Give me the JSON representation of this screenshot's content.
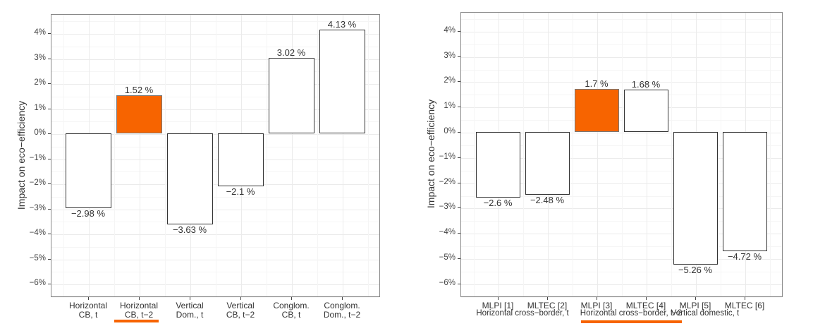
{
  "chart_data": [
    {
      "type": "bar",
      "title": "",
      "xlabel": "",
      "ylabel": "Impact on eco-efficiency",
      "ylim": [
        -6.5,
        4.6
      ],
      "yticks": [
        "4%",
        "3%",
        "2%",
        "1%",
        "0%",
        "-1%",
        "-2%",
        "-3%",
        "-4%",
        "-5%",
        "-6%"
      ],
      "grid": true,
      "categories": [
        "Horizontal\nCB, t",
        "Horizontal\nCB, t-2",
        "Vertical\nDom., t",
        "Vertical\nCB, t-2",
        "Conglom.\nCB, t",
        "Conglom.\nDom., t-2"
      ],
      "values": [
        -2.98,
        1.52,
        -3.63,
        -2.1,
        3.02,
        4.13
      ],
      "value_labels": [
        "-2.98 %",
        "1.52 %",
        "-3.63 %",
        "-2.1 %",
        "3.02 %",
        "4.13 %"
      ],
      "highlighted_index": 1,
      "highlight_color": "#f76400"
    },
    {
      "type": "bar",
      "title": "",
      "xlabel": "",
      "ylabel": "Impact on eco-efficiency",
      "ylim": [
        -6.5,
        4.6
      ],
      "yticks": [
        "4%",
        "3%",
        "2%",
        "1%",
        "0%",
        "-1%",
        "-2%",
        "-3%",
        "-4%",
        "-5%",
        "-6%"
      ],
      "grid": true,
      "categories": [
        "MLPI [1]",
        "MLTEC [2]",
        "MLPI [3]",
        "MLTEC [4]",
        "MLPI [5]",
        "MLTEC [6]"
      ],
      "groups": [
        "Horizontal cross-border, t",
        "Horizontal cross-border, t-2",
        "Vertical domestic, t"
      ],
      "values": [
        -2.6,
        -2.48,
        1.7,
        1.68,
        -5.26,
        -4.72
      ],
      "value_labels": [
        "-2.6 %",
        "-2.48 %",
        "1.7 %",
        "1.68 %",
        "-5.26 %",
        "-4.72 %"
      ],
      "highlighted_index": 2,
      "highlighted_group": 1,
      "highlight_color": "#f76400"
    }
  ],
  "left": {
    "ylabel": "Impact on eco−efficiency",
    "yticks": [
      "4%",
      "3%",
      "2%",
      "1%",
      "0%",
      "−1%",
      "−2%",
      "−3%",
      "−4%",
      "−5%",
      "−6%"
    ],
    "bars": [
      {
        "label": "Horizontal\nCB, t",
        "value": -2.98,
        "text": "−2.98 %"
      },
      {
        "label": "Horizontal\nCB, t−2",
        "value": 1.52,
        "text": "1.52 %"
      },
      {
        "label": "Vertical\nDom., t",
        "value": -3.63,
        "text": "−3.63 %"
      },
      {
        "label": "Vertical\nCB, t−2",
        "value": -2.1,
        "text": "−2.1 %"
      },
      {
        "label": "Conglom.\nCB, t",
        "value": 3.02,
        "text": "3.02 %"
      },
      {
        "label": "Conglom.\nDom., t−2",
        "value": 4.13,
        "text": "4.13 %"
      }
    ]
  },
  "right": {
    "ylabel": "Impact on eco−efficiency",
    "yticks": [
      "4%",
      "3%",
      "2%",
      "1%",
      "0%",
      "−1%",
      "−2%",
      "−3%",
      "−4%",
      "−5%",
      "−6%"
    ],
    "bars": [
      {
        "label": "MLPI [1]",
        "value": -2.6,
        "text": "−2.6 %"
      },
      {
        "label": "MLTEC [2]",
        "value": -2.48,
        "text": "−2.48 %"
      },
      {
        "label": "MLPI [3]",
        "value": 1.7,
        "text": "1.7 %"
      },
      {
        "label": "MLTEC [4]",
        "value": 1.68,
        "text": "1.68 %"
      },
      {
        "label": "MLPI [5]",
        "value": -5.26,
        "text": "−5.26 %"
      },
      {
        "label": "MLTEC [6]",
        "value": -4.72,
        "text": "−4.72 %"
      }
    ],
    "groups": [
      "Horizontal cross−border, t",
      "Horizontal cross−border, t−2",
      "Vertical domestic, t"
    ]
  }
}
